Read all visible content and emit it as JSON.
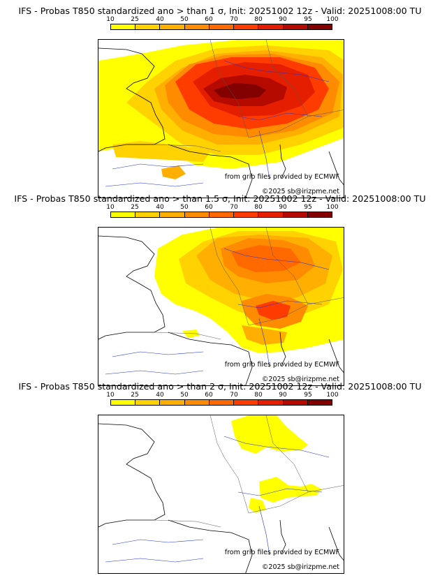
{
  "scale": {
    "ticks": [
      "10",
      "25",
      "40",
      "50",
      "60",
      "70",
      "80",
      "90",
      "95",
      "100"
    ],
    "colors": [
      "#ffff00",
      "#ffd200",
      "#ffaf00",
      "#ff8c00",
      "#ff6900",
      "#ff3c00",
      "#e61e00",
      "#b40a00",
      "#820000",
      "#5a0000"
    ]
  },
  "credits": {
    "source": "from grib files provided by ECMWF",
    "copyright": "©2025 sb@irizpme.net"
  },
  "panels": [
    {
      "title": "IFS - Probas T850  standardized ano > than 1 σ, Init: 20251002 12z - Valid: 20251008:00 TU"
    },
    {
      "title": "IFS - Probas T850  standardized ano > than 1.5 σ, Init: 20251002 12z - Valid: 20251008:00 TU"
    },
    {
      "title": "IFS - Probas T850  standardized ano > than 2 σ, Init: 20251002 12z - Valid: 20251008:00 TU"
    }
  ]
}
